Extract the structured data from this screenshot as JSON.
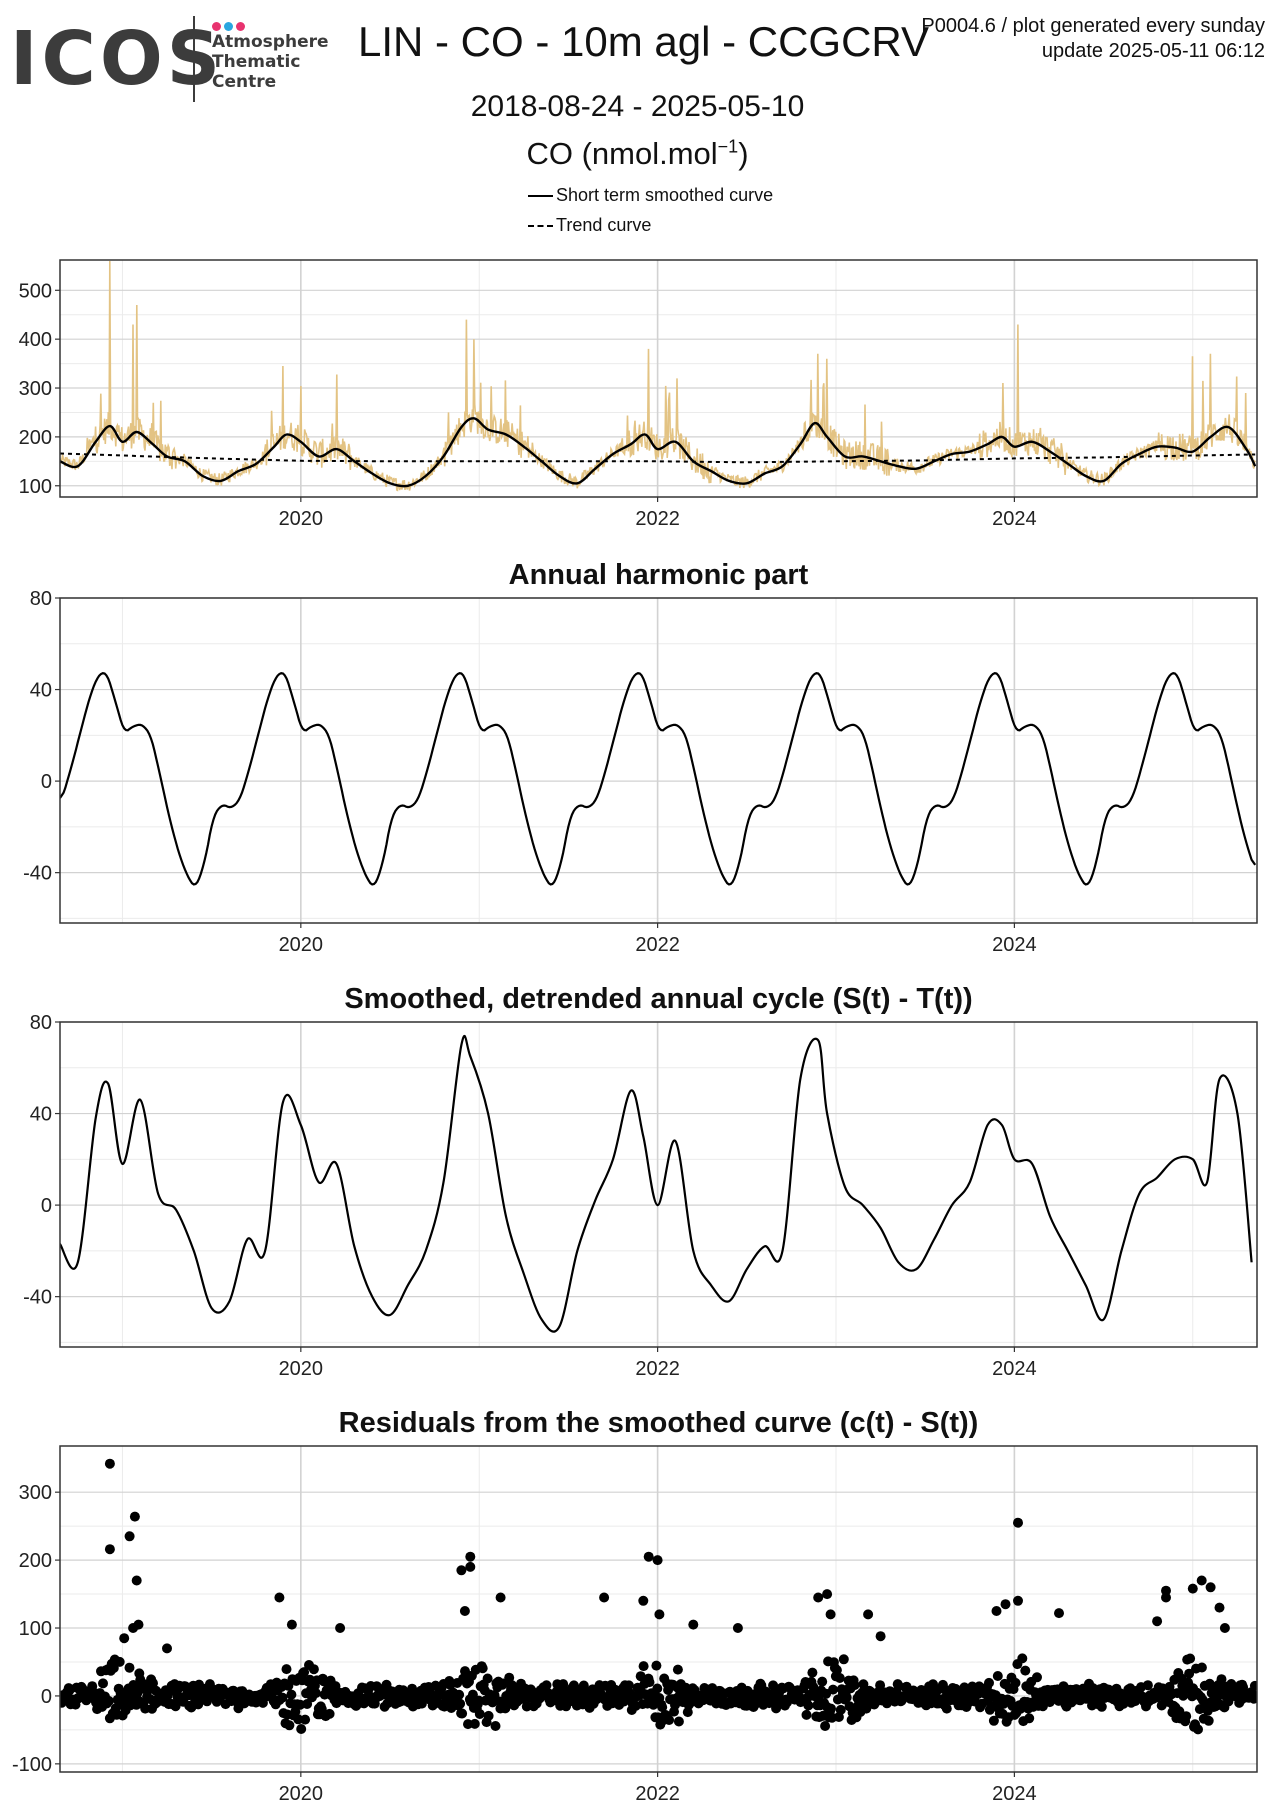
{
  "logo": {
    "word": "ICOS",
    "lines": [
      "Atmosphere",
      "Thematic",
      "Centre"
    ],
    "dot_colors": [
      "#e8336f",
      "#2aa6e0",
      "#e8336f"
    ]
  },
  "header": {
    "title": "LIN - CO - 10m agl - CCGCRV",
    "meta_line1": "P0004.6 / plot generated every sunday",
    "meta_line2": "update  2025-05-11 06:12",
    "date_range": "2018-08-24 - 2025-05-10",
    "units_main": "CO (nmol.mol",
    "units_sup": "−1",
    "units_close": ")"
  },
  "legend": {
    "items": [
      {
        "label": "Short term smoothed curve",
        "style": "solid"
      },
      {
        "label": "Trend curve",
        "style": "dashed"
      }
    ]
  },
  "colors": {
    "raw": "#e3c383",
    "curve": "#000000",
    "grid_major": "#d2d2d2",
    "grid_minor": "#ebebeb",
    "frame": "#333333"
  },
  "chart_data": [
    {
      "id": "co",
      "type": "line",
      "title": "",
      "xlabel": "",
      "ylabel": "",
      "xlim": [
        2018.65,
        2025.36
      ],
      "ylim": [
        77,
        562
      ],
      "yticks": [
        100,
        200,
        300,
        400,
        500
      ],
      "xticks": [
        2020,
        2022,
        2024
      ],
      "series": [
        {
          "name": "Short term smoothed curve",
          "style": "solid",
          "x": [
            2018.65,
            2018.75,
            2018.85,
            2018.93,
            2019.0,
            2019.08,
            2019.17,
            2019.25,
            2019.35,
            2019.45,
            2019.55,
            2019.65,
            2019.75,
            2019.85,
            2019.92,
            2020.0,
            2020.1,
            2020.2,
            2020.3,
            2020.4,
            2020.5,
            2020.6,
            2020.7,
            2020.8,
            2020.9,
            2020.97,
            2021.05,
            2021.15,
            2021.25,
            2021.35,
            2021.45,
            2021.55,
            2021.65,
            2021.75,
            2021.85,
            2021.93,
            2022.0,
            2022.1,
            2022.2,
            2022.3,
            2022.4,
            2022.5,
            2022.6,
            2022.7,
            2022.8,
            2022.88,
            2022.95,
            2023.05,
            2023.15,
            2023.25,
            2023.35,
            2023.45,
            2023.55,
            2023.65,
            2023.75,
            2023.85,
            2023.93,
            2024.0,
            2024.1,
            2024.2,
            2024.3,
            2024.4,
            2024.5,
            2024.6,
            2024.7,
            2024.8,
            2024.9,
            2025.0,
            2025.1,
            2025.2,
            2025.3,
            2025.35
          ],
          "y": [
            150,
            140,
            190,
            222,
            190,
            210,
            185,
            160,
            150,
            120,
            110,
            130,
            145,
            180,
            205,
            190,
            160,
            175,
            150,
            125,
            105,
            100,
            120,
            160,
            220,
            238,
            215,
            205,
            180,
            150,
            120,
            105,
            135,
            165,
            185,
            205,
            175,
            190,
            150,
            130,
            110,
            105,
            125,
            140,
            185,
            228,
            200,
            160,
            160,
            150,
            140,
            135,
            150,
            165,
            170,
            185,
            200,
            180,
            190,
            170,
            145,
            120,
            110,
            145,
            165,
            180,
            178,
            170,
            200,
            220,
            175,
            140
          ]
        },
        {
          "name": "Trend curve",
          "style": "dashed",
          "x": [
            2018.65,
            2019.0,
            2019.5,
            2020.0,
            2020.5,
            2021.0,
            2021.5,
            2022.0,
            2022.5,
            2023.0,
            2023.5,
            2024.0,
            2024.5,
            2025.0,
            2025.35
          ],
          "y": [
            166,
            162,
            156,
            151,
            150,
            150,
            150,
            150,
            148,
            150,
            152,
            156,
            158,
            162,
            164
          ]
        }
      ]
    },
    {
      "id": "harmonic",
      "type": "line",
      "title": "Annual harmonic part",
      "xlim": [
        2018.65,
        2025.36
      ],
      "ylim": [
        -62,
        80
      ],
      "yticks": [
        -40,
        0,
        40,
        80
      ],
      "xticks": [
        2020,
        2022,
        2024
      ],
      "period_profile": {
        "phase": [
          0.0,
          0.05,
          0.1,
          0.15,
          0.2,
          0.25,
          0.3,
          0.35,
          0.4,
          0.45,
          0.5,
          0.55,
          0.6,
          0.65,
          0.7,
          0.75,
          0.8,
          0.85,
          0.9,
          0.95,
          1.0
        ],
        "value": [
          48,
          35,
          21,
          24,
          25,
          20,
          3,
          -15,
          -30,
          -41,
          -47,
          -36,
          -15,
          -10,
          -12,
          -8,
          5,
          20,
          35,
          46,
          48
        ]
      },
      "first_peak": 2018.91,
      "series": [
        {
          "name": "",
          "style": "solid"
        }
      ]
    },
    {
      "id": "detrended",
      "type": "line",
      "title": "Smoothed, detrended annual cycle (S(t) - T(t))",
      "xlim": [
        2018.65,
        2025.36
      ],
      "ylim": [
        -62,
        80
      ],
      "yticks": [
        -40,
        0,
        40,
        80
      ],
      "xticks": [
        2020,
        2022,
        2024
      ],
      "series": [
        {
          "name": "",
          "style": "solid",
          "x": [
            2018.65,
            2018.75,
            2018.85,
            2018.92,
            2019.0,
            2019.1,
            2019.2,
            2019.3,
            2019.4,
            2019.5,
            2019.6,
            2019.7,
            2019.8,
            2019.9,
            2020.0,
            2020.1,
            2020.2,
            2020.3,
            2020.4,
            2020.5,
            2020.6,
            2020.7,
            2020.8,
            2020.9,
            2020.95,
            2021.05,
            2021.15,
            2021.25,
            2021.35,
            2021.45,
            2021.55,
            2021.65,
            2021.75,
            2021.85,
            2021.92,
            2022.0,
            2022.1,
            2022.2,
            2022.3,
            2022.4,
            2022.5,
            2022.6,
            2022.7,
            2022.8,
            2022.9,
            2022.95,
            2023.05,
            2023.15,
            2023.25,
            2023.35,
            2023.45,
            2023.55,
            2023.65,
            2023.75,
            2023.85,
            2023.93,
            2024.0,
            2024.1,
            2024.2,
            2024.3,
            2024.4,
            2024.5,
            2024.6,
            2024.7,
            2024.8,
            2024.9,
            2025.0,
            2025.08,
            2025.15,
            2025.25,
            2025.33
          ],
          "y": [
            -17,
            -25,
            38,
            53,
            18,
            46,
            5,
            -2,
            -20,
            -45,
            -42,
            -15,
            -20,
            45,
            35,
            10,
            18,
            -18,
            -40,
            -48,
            -35,
            -20,
            10,
            70,
            65,
            40,
            -5,
            -30,
            -50,
            -53,
            -20,
            2,
            20,
            50,
            30,
            0,
            28,
            -20,
            -35,
            -42,
            -28,
            -18,
            -20,
            55,
            72,
            40,
            8,
            0,
            -10,
            -25,
            -28,
            -15,
            0,
            10,
            35,
            35,
            20,
            18,
            -5,
            -20,
            -35,
            -50,
            -20,
            5,
            12,
            20,
            20,
            10,
            55,
            40,
            -25
          ]
        }
      ]
    },
    {
      "id": "residuals",
      "type": "scatter",
      "title": "Residuals from the smoothed curve (c(t) - S(t))",
      "xlim": [
        2018.65,
        2025.36
      ],
      "ylim": [
        -112,
        368
      ],
      "yticks": [
        -100,
        0,
        100,
        200,
        300
      ],
      "xticks": [
        2020,
        2022,
        2024
      ],
      "series": [
        {
          "name": "",
          "style": "points",
          "outliers": {
            "x": [
              2018.93,
              2018.93,
              2019.04,
              2019.07,
              2019.08,
              2019.09,
              2019.06,
              2019.01,
              2019.25,
              2020.9,
              2020.95,
              2020.95,
              2020.92,
              2021.12,
              2021.95,
              2022.0,
              2022.01,
              2021.92,
              2022.2,
              2022.9,
              2022.95,
              2022.97,
              2023.95,
              2023.9,
              2024.02,
              2024.02,
              2024.25,
              2024.85,
              2024.85,
              2025.0,
              2025.05,
              2025.1,
              2025.15,
              2024.8,
              2025.18,
              2019.88,
              2019.95,
              2020.22,
              2021.7,
              2022.45,
              2023.25,
              2023.18
            ],
            "y": [
              342,
              216,
              235,
              264,
              170,
              105,
              100,
              85,
              70,
              185,
              205,
              190,
              125,
              145,
              205,
              200,
              120,
              140,
              105,
              145,
              150,
              120,
              135,
              125,
              255,
              140,
              122,
              155,
              145,
              158,
              170,
              160,
              130,
              110,
              100,
              145,
              105,
              100,
              145,
              100,
              88,
              120
            ]
          },
          "seasonal_spread": {
            "peak_phase": 0.2,
            "max_amplitude": 70,
            "base_amplitude": 18
          }
        }
      ]
    }
  ]
}
